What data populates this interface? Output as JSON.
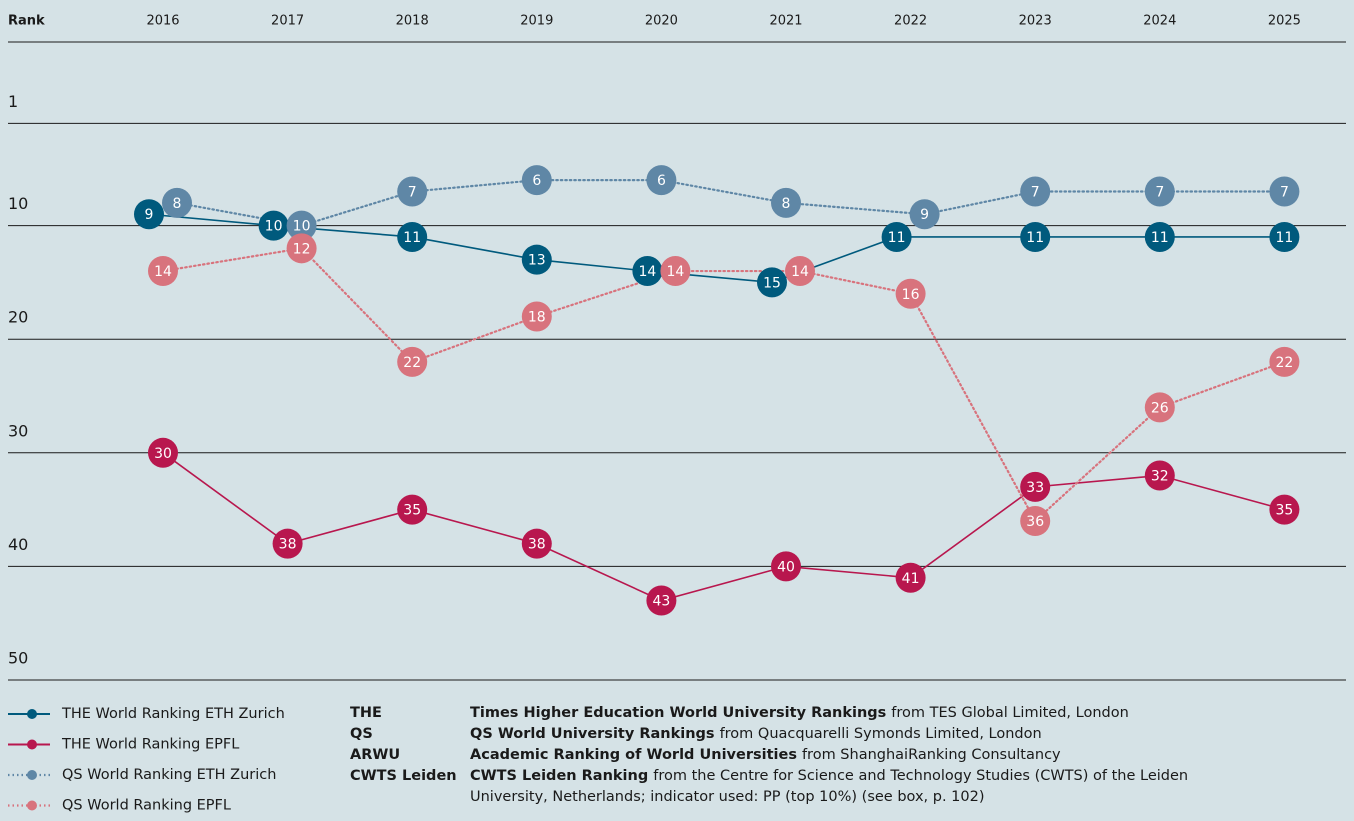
{
  "chart_data": {
    "type": "line",
    "y_axis_label": "Rank",
    "categories": [
      "2016",
      "2017",
      "2018",
      "2019",
      "2020",
      "2021",
      "2022",
      "2023",
      "2024",
      "2025"
    ],
    "ylim": [
      0,
      50
    ],
    "inverted": true,
    "yticks": [
      1,
      10,
      20,
      30,
      40,
      50
    ],
    "grid": true,
    "series": [
      {
        "name": "THE World Ranking ETH Zurich",
        "color": "#005a7d",
        "style": "solid",
        "values": [
          9,
          10,
          11,
          13,
          14,
          15,
          11,
          11,
          11,
          11
        ]
      },
      {
        "name": "THE World Ranking EPFL",
        "color": "#b8174e",
        "style": "solid",
        "values": [
          30,
          38,
          35,
          38,
          43,
          40,
          41,
          33,
          32,
          35
        ]
      },
      {
        "name": "QS World Ranking ETH Zurich",
        "color": "#5f87a6",
        "style": "dotted",
        "values": [
          8,
          10,
          7,
          6,
          6,
          8,
          9,
          7,
          7,
          7
        ]
      },
      {
        "name": "QS World Ranking EPFL",
        "color": "#d8737d",
        "style": "dotted",
        "values": [
          14,
          12,
          22,
          18,
          14,
          14,
          16,
          36,
          26,
          22
        ]
      }
    ],
    "glossary": [
      {
        "abbr": "THE",
        "name": "Times Higher Education World University Rankings",
        "detail": "from TES Global Limited, London"
      },
      {
        "abbr": "QS",
        "name": "QS World University Rankings",
        "detail": "from Quacquarelli Symonds Limited, London"
      },
      {
        "abbr": "ARWU",
        "name": "Academic Ranking of World Universities",
        "detail": "from ShanghaiRanking Consultancy"
      },
      {
        "abbr": "CWTS Leiden",
        "name": "CWTS Leiden Ranking",
        "detail": "from the Centre for Science and Technology Studies (CWTS) of the Leiden University, Netherlands; indicator used: PP (top 10%) (see box, p. 102)"
      }
    ]
  }
}
